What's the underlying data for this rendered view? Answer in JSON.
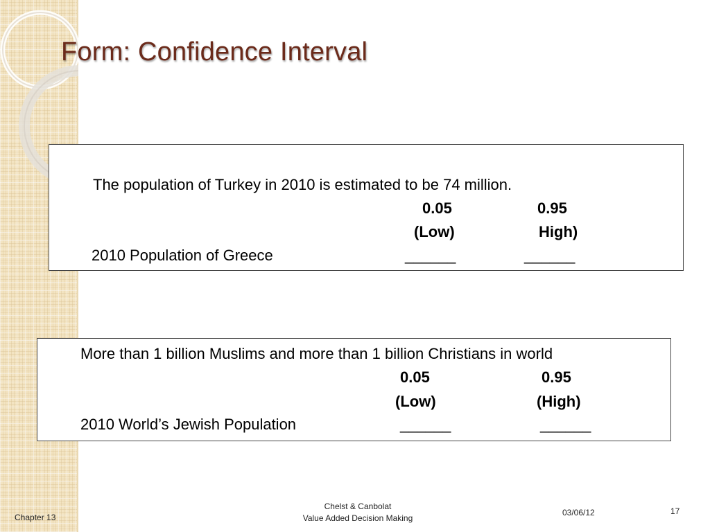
{
  "slide": {
    "title": "Form: Confidence Interval"
  },
  "box1": {
    "statement": "The population of Turkey in 2010 is estimated to be 74 million.",
    "low_value": "0.05",
    "high_value": "0.95",
    "low_label": "(Low)",
    "high_label": "High)",
    "question": "2010 Population of Greece",
    "low_blank": "______",
    "high_blank": "______"
  },
  "box2": {
    "statement": "More than 1 billion Muslims and more than 1 billion Christians  in world",
    "low_value": "0.05",
    "high_value": "0.95",
    "low_label": "(Low)",
    "high_label": "(High)",
    "question": "2010 World’s Jewish Population",
    "low_blank": "______",
    "high_blank": "______"
  },
  "footer": {
    "chapter": "Chapter 13",
    "authors": "Chelst & Canbolat",
    "book": "Value Added Decision Making",
    "date": "03/06/12",
    "page_number": "17"
  },
  "colors": {
    "title": "#6b2a1a",
    "sidebar": "#f3e4c2",
    "box_border": "#444444"
  }
}
